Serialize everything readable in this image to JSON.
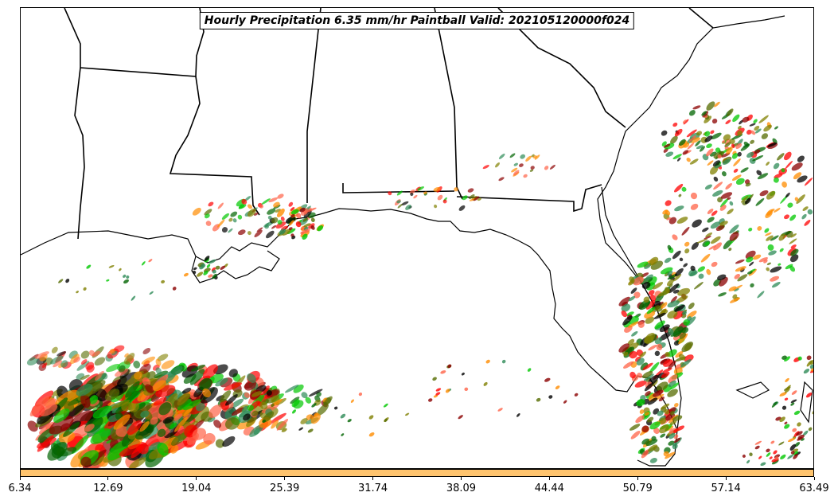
{
  "title": "Hourly Precipitation 6.35 mm/hr Paintball Valid: 202105120000f024",
  "colorbar": {
    "color": "#ffc46e",
    "tick_labels": [
      "6.34",
      "12.69",
      "19.04",
      "25.39",
      "31.74",
      "38.09",
      "44.44",
      "50.79",
      "57.14",
      "63.49"
    ]
  },
  "colors": {
    "member_colors": [
      "#ff0000",
      "#ff8c00",
      "#00c800",
      "#006400",
      "#8b0000",
      "#556b00",
      "#000000",
      "#808000",
      "#ff6347",
      "#2e8b57"
    ],
    "coastline": "#000000",
    "background": "#ffffff"
  }
}
